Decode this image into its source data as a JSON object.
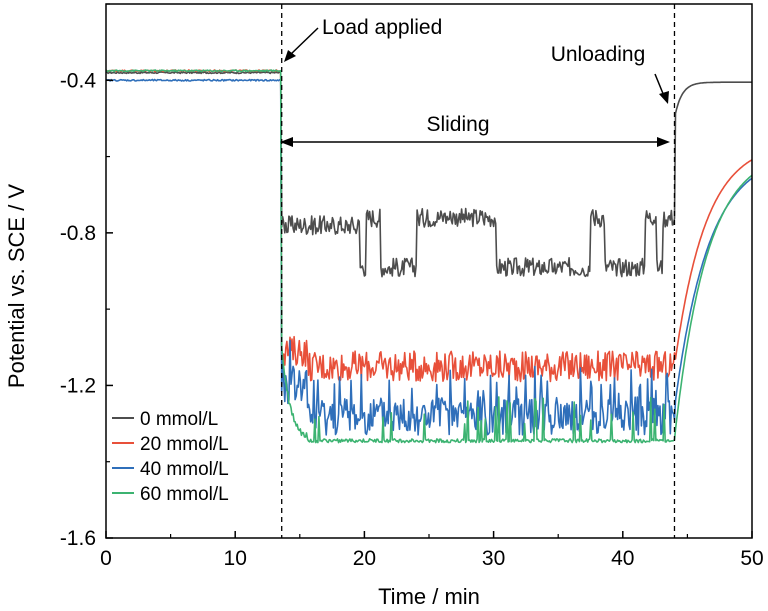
{
  "chart_data": {
    "type": "line",
    "xlabel": "Time / min",
    "ylabel": "Potential vs. SCE / V",
    "xlim": [
      0,
      50
    ],
    "ylim": [
      -1.6,
      -0.2
    ],
    "xticks": [
      0,
      10,
      20,
      30,
      40,
      50
    ],
    "yticks": [
      -1.6,
      -1.2,
      -0.8,
      -0.4
    ],
    "xtick_labels": [
      "0",
      "10",
      "20",
      "30",
      "40",
      "50"
    ],
    "ytick_labels": [
      "-1.6",
      "-1.2",
      "-0.8",
      "-0.4"
    ],
    "grid": false,
    "legend_position": "bottom-left",
    "annotations": {
      "load": "Load applied",
      "sliding": "Sliding",
      "unloading": "Unloading"
    },
    "events": {
      "load_time": 13.6,
      "unload_time": 44.0
    },
    "series": [
      {
        "name": "0 mmol/L",
        "color": "#4d4d4d",
        "pre": -0.38,
        "low": -0.8,
        "high": -0.72,
        "lowB": -0.9,
        "plateau_end": 0.9,
        "spike_freq": 0.5,
        "final": -0.405,
        "post": 0.55
      },
      {
        "name": "20 mmol/L",
        "color": "#e8503a",
        "pre": -0.375,
        "low": -1.14,
        "high": -1.08,
        "lowB": -1.17,
        "plateau_end": 0.06,
        "spike_freq": 0.0,
        "final": -0.56,
        "post": 2.4
      },
      {
        "name": "40 mmol/L",
        "color": "#2f6fba",
        "pre": -0.4,
        "low": -1.2,
        "high": -1.14,
        "lowB": -1.3,
        "plateau_end": 0.06,
        "spike_freq": 0.0,
        "final": -0.59,
        "post": 2.6
      },
      {
        "name": "60 mmol/L",
        "color": "#3cb371",
        "pre": -0.375,
        "low": -1.34,
        "high": -1.24,
        "lowB": -1.35,
        "plateau_end": 0.1,
        "spike_freq": 0.3,
        "final": -0.58,
        "post": 2.5
      }
    ]
  }
}
